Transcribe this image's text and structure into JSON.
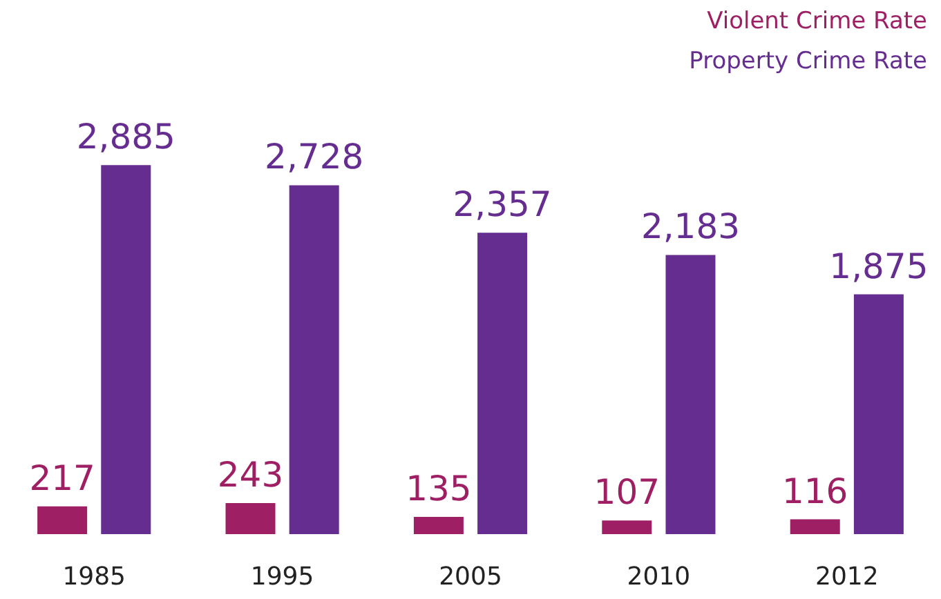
{
  "chart_data": {
    "type": "bar",
    "categories": [
      "1985",
      "1995",
      "2005",
      "2010",
      "2012"
    ],
    "series": [
      {
        "name": "Violent Crime Rate",
        "color": "#9e1f63",
        "values": [
          217,
          243,
          135,
          107,
          116
        ],
        "value_labels": [
          "217",
          "243",
          "135",
          "107",
          "116"
        ]
      },
      {
        "name": "Property Crime Rate",
        "color": "#662d91",
        "values": [
          2885,
          2728,
          2357,
          2183,
          1875
        ],
        "value_labels": [
          "2,885",
          "2,728",
          "2,357",
          "2,183",
          "1,875"
        ]
      }
    ],
    "legend": "top right"
  }
}
